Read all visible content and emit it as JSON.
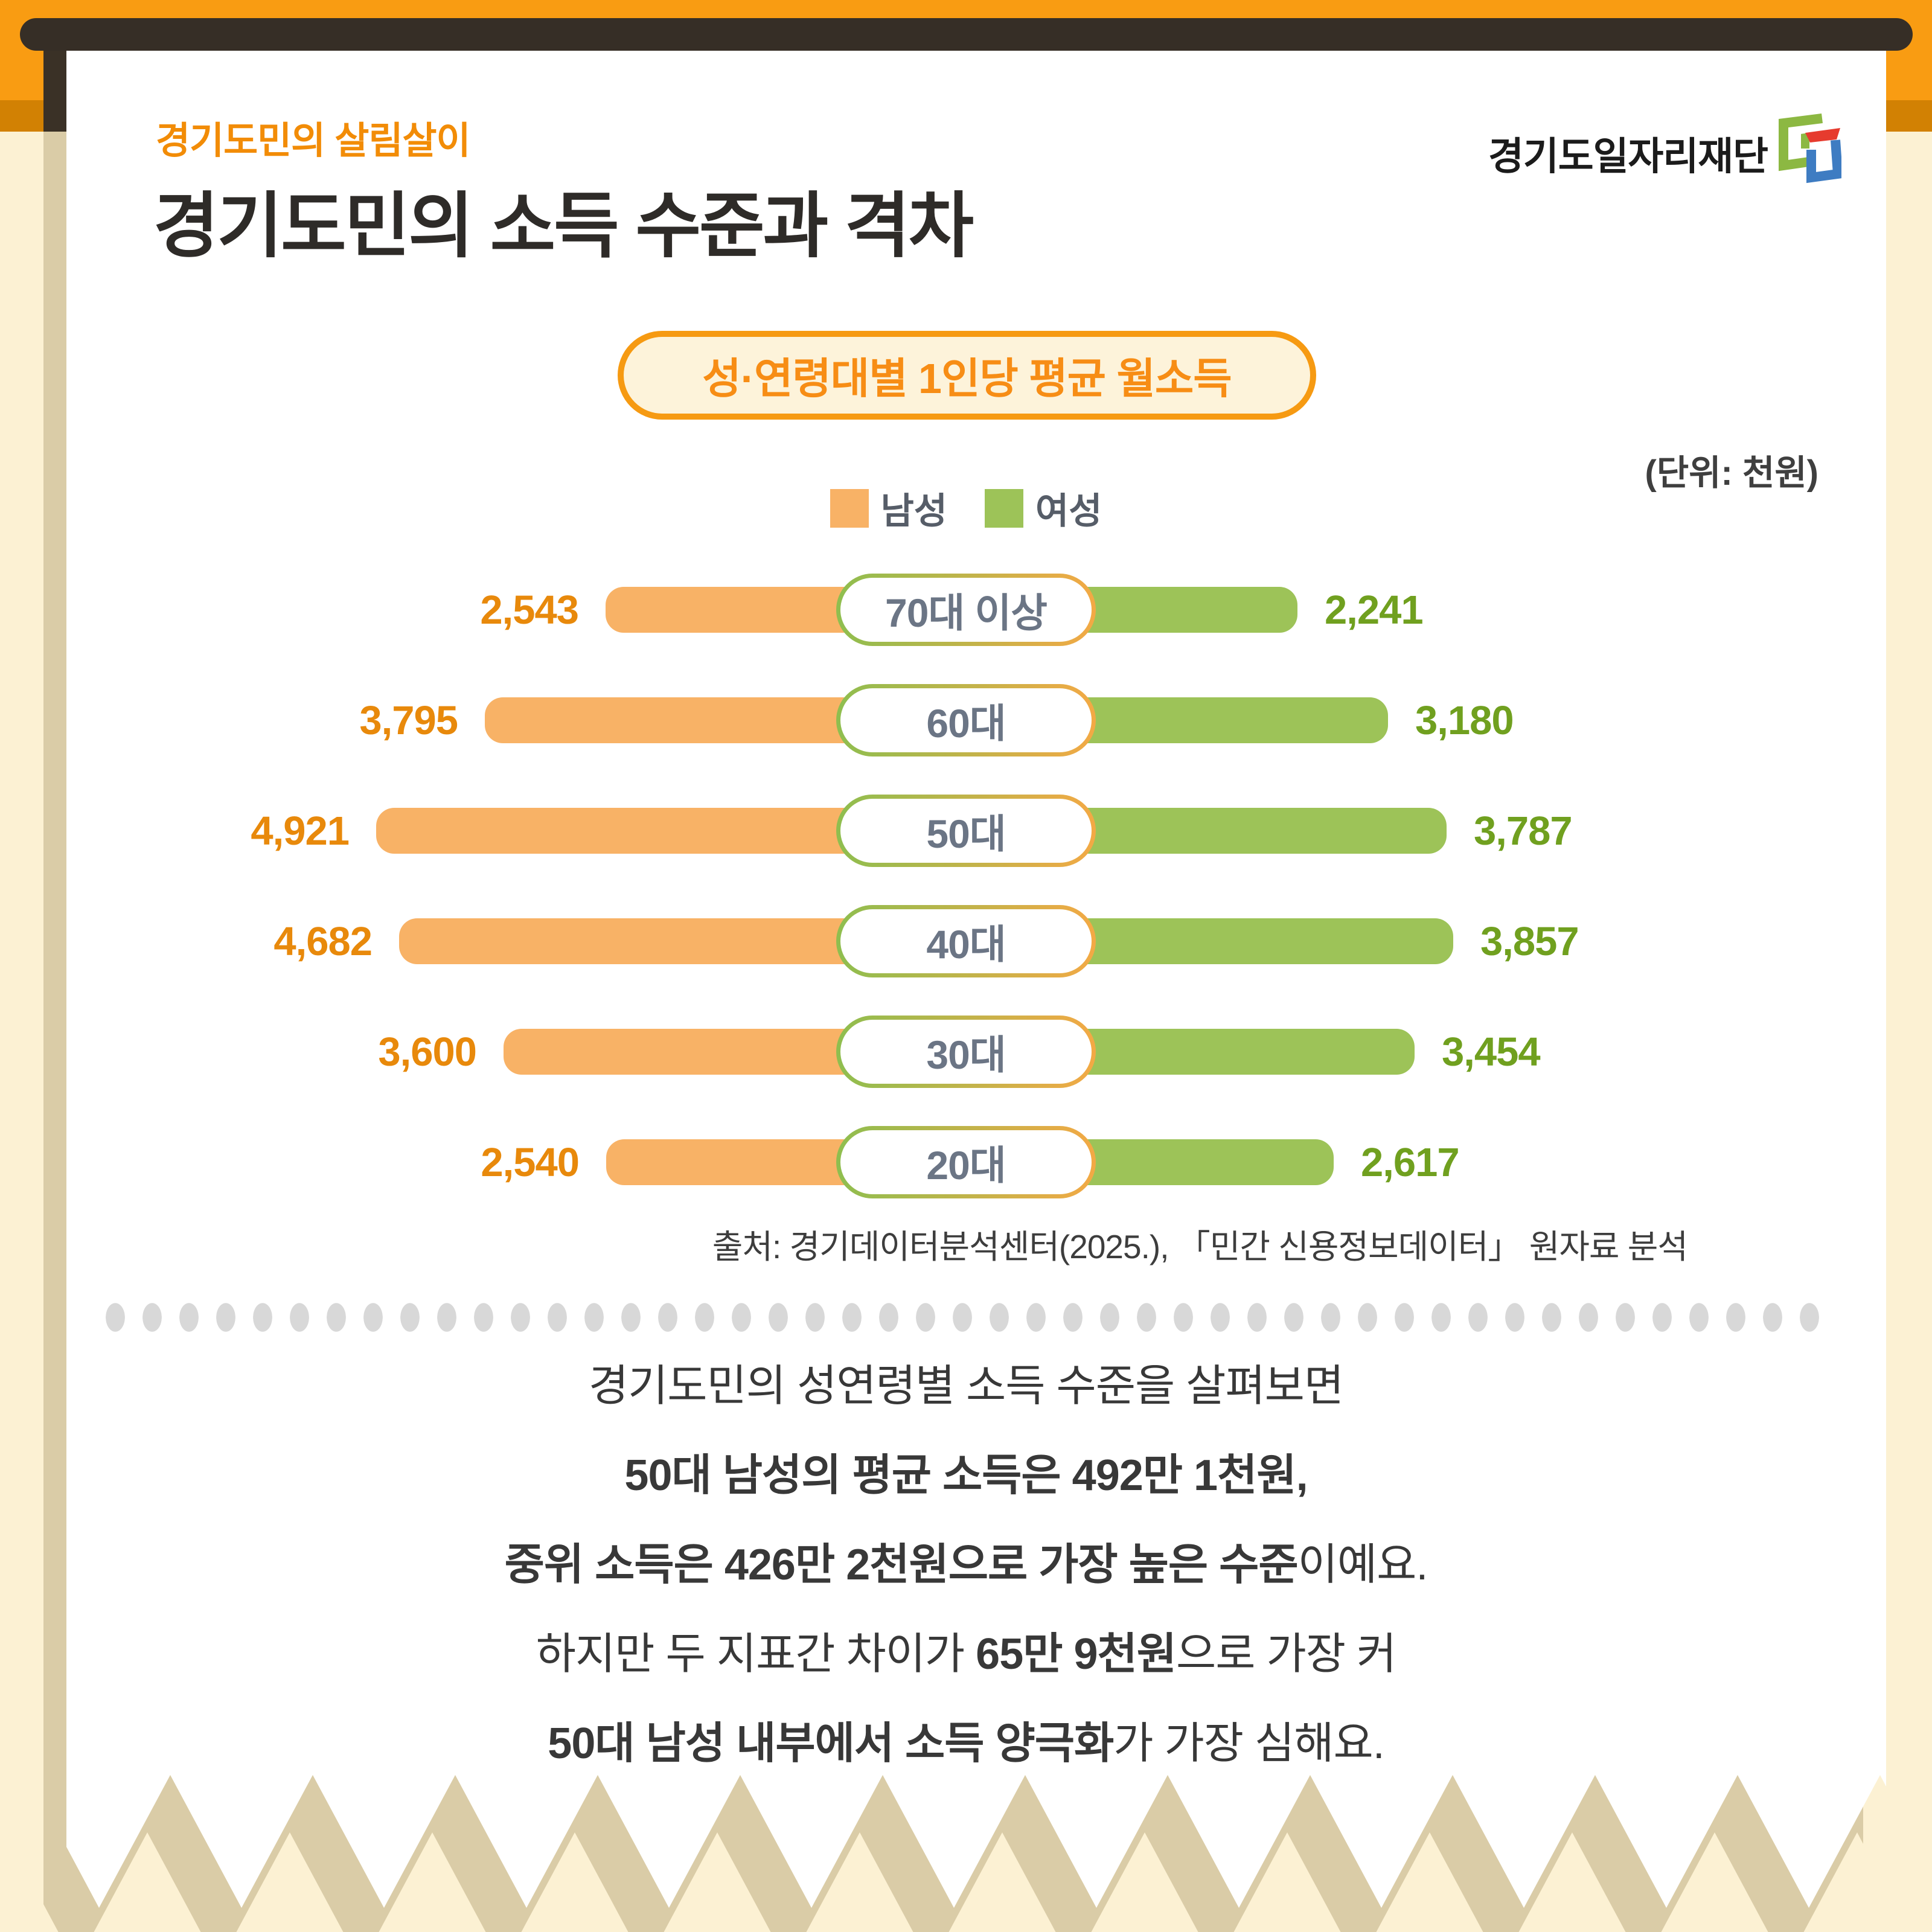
{
  "header": {
    "eyebrow": "경기도민의 살림살이",
    "title": "경기도민의 소득 수준과 격차",
    "logo_text": "경기도일자리재단"
  },
  "chart": {
    "badge_title": "성·연령대별 1인당 평균 월소득",
    "unit_note": "(단위: 천원)",
    "legend": [
      {
        "label": "남성",
        "color": "#F8B266"
      },
      {
        "label": "여성",
        "color": "#9DC358"
      }
    ],
    "source": "출처: 경기데이터분석센터(2025.), 「민간 신용정보데이터」 원자료 분석"
  },
  "chart_data": {
    "type": "bar",
    "variant": "diverging-horizontal",
    "title": "성·연령대별 1인당 평균 월소득",
    "unit": "천원",
    "categories": [
      "70대 이상",
      "60대",
      "50대",
      "40대",
      "30대",
      "20대"
    ],
    "series": [
      {
        "name": "남성",
        "side": "left",
        "color": "#F8B266",
        "label_color": "#E8890B",
        "values": [
          2543,
          3795,
          4921,
          4682,
          3600,
          2540
        ]
      },
      {
        "name": "여성",
        "side": "right",
        "color": "#9DC358",
        "label_color": "#70A01F",
        "values": [
          2241,
          3180,
          3787,
          3857,
          3454,
          2617
        ]
      }
    ],
    "value_labels_shown": true,
    "axis_shown": false,
    "legend_position": "top-center"
  },
  "body": {
    "lines": [
      [
        {
          "text": "경기도민의 성연령별 소득 수준을 살펴보면",
          "bold": false
        }
      ],
      [
        {
          "text": "50대 남성의 평균 소득은 492만 1천원,",
          "bold": true
        }
      ],
      [
        {
          "text": "중위 소득은 426만 2천원으로 가장 높은 수준",
          "bold": true
        },
        {
          "text": "이예요.",
          "bold": false
        }
      ],
      [
        {
          "text": "하지만 두 지표간 차이가 ",
          "bold": false
        },
        {
          "text": "65만 9천원",
          "bold": true
        },
        {
          "text": "으로 가장 커",
          "bold": false
        }
      ],
      [
        {
          "text": "50대 남성 내부에서 소득 양극화",
          "bold": true
        },
        {
          "text": "가  가장 심해요.",
          "bold": false
        }
      ]
    ]
  },
  "colors": {
    "accent_orange": "#F28C07",
    "male_bar": "#F8B266",
    "female_bar": "#9DC358",
    "male_label": "#E8890B",
    "female_label": "#70A01F",
    "pill_border_green": "#8EBE4F",
    "pill_border_orange": "#F3A945",
    "top_band": "#F99C12",
    "top_band_shadow": "#D28103",
    "page_cream": "#FCF1D3",
    "clip_bar_dark": "#362E26",
    "paper_shadow_tan": "#DACCA7",
    "age_pill_text": "#6B7585"
  }
}
